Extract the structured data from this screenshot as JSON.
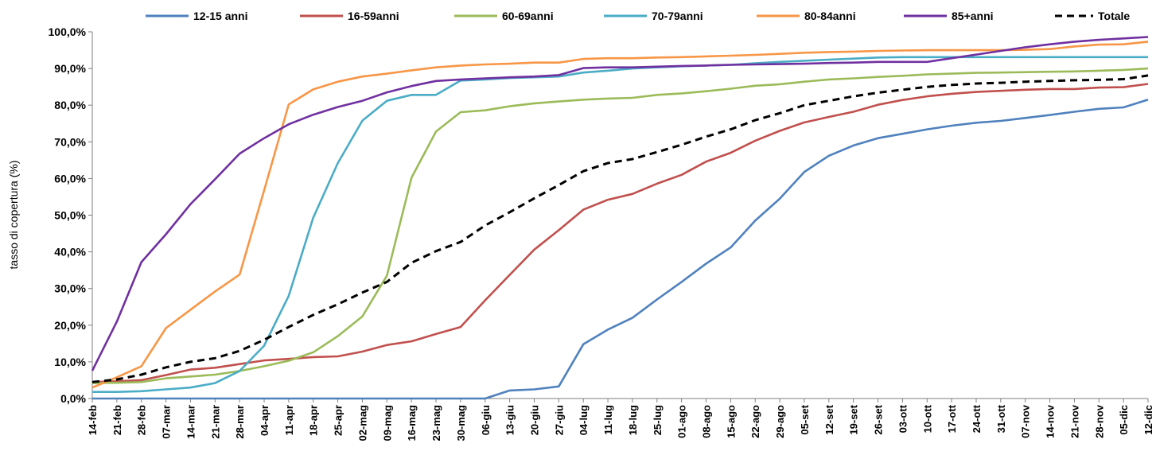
{
  "chart_data": {
    "type": "line",
    "title": "",
    "xlabel": "",
    "ylabel": "tasso di copertura (%)",
    "ylim": [
      0,
      100
    ],
    "y_ticks": [
      "0,0%",
      "10,0%",
      "20,0%",
      "30,0%",
      "40,0%",
      "50,0%",
      "60,0%",
      "70,0%",
      "80,0%",
      "90,0%",
      "100,0%"
    ],
    "grid": false,
    "legend_position": "top",
    "categories": [
      "14-feb",
      "21-feb",
      "28-feb",
      "07-mar",
      "14-mar",
      "21-mar",
      "28-mar",
      "04-apr",
      "11-apr",
      "18-apr",
      "25-apr",
      "02-mag",
      "09-mag",
      "16-mag",
      "23-mag",
      "30-mag",
      "06-giu",
      "13-giu",
      "20-giu",
      "27-giu",
      "04-lug",
      "11-lug",
      "18-lug",
      "25-lug",
      "01-ago",
      "08-ago",
      "15-ago",
      "22-ago",
      "29-ago",
      "05-set",
      "12-set",
      "19-set",
      "26-set",
      "03-ott",
      "10-ott",
      "17-ott",
      "24-ott",
      "31-ott",
      "07-nov",
      "14-nov",
      "21-nov",
      "28-nov",
      "05-dic",
      "12-dic"
    ],
    "series": [
      {
        "name": "12-15 anni",
        "color": "#4F81BD",
        "dash": false,
        "values": [
          0,
          0,
          0,
          0,
          0,
          0,
          0,
          0,
          0,
          0,
          0,
          0,
          0,
          0,
          0,
          0,
          0,
          2.2,
          2.5,
          3.3,
          14.8,
          18.8,
          22,
          27,
          31.8,
          36.8,
          41.2,
          48.5,
          54.5,
          61.8,
          66.2,
          69,
          71,
          72.2,
          73.4,
          74.4,
          75.2,
          75.7,
          76.5,
          77.3,
          78.2,
          79,
          79.4,
          81.5
        ]
      },
      {
        "name": "16-59anni",
        "color": "#C0504D",
        "dash": false,
        "values": [
          4.5,
          4.7,
          5,
          6.4,
          7.9,
          8.4,
          9.4,
          10.4,
          10.8,
          11.3,
          11.5,
          12.8,
          14.6,
          15.6,
          17.6,
          19.5,
          26.8,
          33.7,
          40.6,
          45.9,
          51.5,
          54.2,
          55.8,
          58.6,
          61,
          64.6,
          67,
          70.3,
          73,
          75.3,
          76.8,
          78.2,
          80.1,
          81.4,
          82.4,
          83.1,
          83.6,
          83.9,
          84.2,
          84.4,
          84.4,
          84.8,
          84.9,
          85.8
        ]
      },
      {
        "name": "60-69anni",
        "color": "#9BBB59",
        "dash": false,
        "values": [
          4.2,
          4.3,
          4.5,
          5.5,
          6,
          6.5,
          7.5,
          8.8,
          10.3,
          12.6,
          17,
          22.4,
          33.5,
          60.2,
          72.8,
          78.1,
          78.6,
          79.7,
          80.5,
          81,
          81.5,
          81.8,
          82,
          82.8,
          83.2,
          83.8,
          84.5,
          85.3,
          85.7,
          86.4,
          87,
          87.3,
          87.7,
          88,
          88.4,
          88.6,
          88.8,
          88.9,
          89,
          89.1,
          89.2,
          89.4,
          89.6,
          90
        ]
      },
      {
        "name": "70-79anni",
        "color": "#4BACC6",
        "dash": false,
        "values": [
          1.8,
          1.8,
          2,
          2.5,
          3,
          4.2,
          7.5,
          14.4,
          28,
          49.3,
          64.2,
          75.8,
          81.2,
          82.8,
          82.8,
          86.7,
          87,
          87.4,
          87.6,
          87.8,
          88.9,
          89.4,
          90,
          90.3,
          90.6,
          90.8,
          91,
          91.4,
          91.8,
          92.1,
          92.4,
          92.7,
          93,
          93.1,
          93.1,
          93.1,
          93.1,
          93.1,
          93.1,
          93.1,
          93.1,
          93.1,
          93.1,
          93.1
        ]
      },
      {
        "name": "80-84anni",
        "color": "#F79646",
        "dash": false,
        "values": [
          3,
          5.8,
          8.8,
          19.2,
          24.2,
          29.2,
          33.8,
          56.8,
          80.2,
          84.3,
          86.4,
          87.8,
          88.6,
          89.5,
          90.3,
          90.8,
          91.1,
          91.3,
          91.6,
          91.6,
          92.6,
          92.8,
          92.8,
          93,
          93.1,
          93.3,
          93.5,
          93.7,
          94,
          94.3,
          94.5,
          94.6,
          94.8,
          94.9,
          95,
          95,
          95,
          95,
          95.1,
          95.3,
          96,
          96.5,
          96.6,
          97.3
        ]
      },
      {
        "name": "85+anni",
        "color": "#7030A0",
        "dash": false,
        "values": [
          7.6,
          21,
          37.2,
          44.8,
          53,
          59.8,
          66.8,
          71,
          74.8,
          77.4,
          79.5,
          81.2,
          83.5,
          85.2,
          86.6,
          87,
          87.3,
          87.6,
          87.8,
          88.2,
          90.1,
          90.3,
          90.3,
          90.5,
          90.7,
          90.8,
          91,
          91.1,
          91.2,
          91.3,
          91.5,
          91.6,
          91.8,
          91.8,
          91.8,
          92.8,
          93.8,
          94.8,
          95.8,
          96.6,
          97.3,
          97.8,
          98.2,
          98.6
        ]
      },
      {
        "name": "Totale",
        "color": "#000000",
        "dash": true,
        "values": [
          4.5,
          5.2,
          6.5,
          8.5,
          10,
          11,
          13,
          16,
          19.5,
          22.8,
          25.7,
          28.9,
          31.8,
          37,
          40.2,
          42.7,
          47.2,
          50.8,
          54.6,
          58.2,
          62,
          64.2,
          65.3,
          67.2,
          69.2,
          71.4,
          73.4,
          75.9,
          77.8,
          80,
          81.2,
          82.4,
          83.4,
          84.2,
          85,
          85.5,
          85.9,
          86.1,
          86.4,
          86.6,
          86.8,
          86.9,
          87.1,
          88.1
        ]
      }
    ]
  }
}
